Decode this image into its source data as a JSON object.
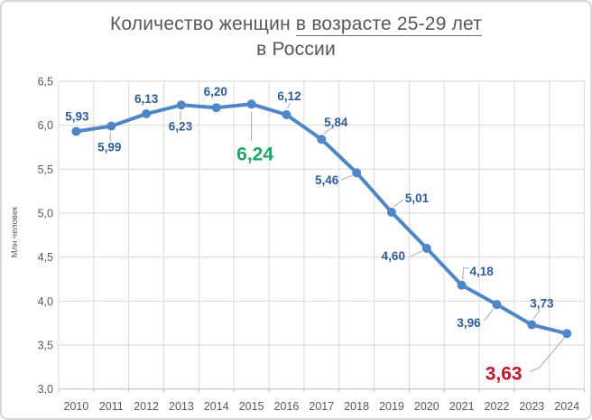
{
  "header": {
    "title_prefix": "Количество женщин ",
    "title_underlined": "в возрасте 25-29 лет",
    "title_line2": "в России"
  },
  "chart_data": {
    "type": "line",
    "title": "Количество женщин в возрасте 25-29 лет в России",
    "x": [
      "2010",
      "2011",
      "2012",
      "2013",
      "2014",
      "2015",
      "2016",
      "2017",
      "2018",
      "2019",
      "2020",
      "2021",
      "2022",
      "2023",
      "2024"
    ],
    "values": [
      5.93,
      5.99,
      6.13,
      6.23,
      6.2,
      6.24,
      6.12,
      5.84,
      5.46,
      5.01,
      4.6,
      4.18,
      3.96,
      3.73,
      3.63
    ],
    "point_labels": [
      "5,93",
      "5,99",
      "6,13",
      "6,23",
      "6,20",
      "6,24",
      "6,12",
      "5,84",
      "5,46",
      "5,01",
      "4,60",
      "4,18",
      "3,96",
      "3,73",
      "3,63"
    ],
    "ylabel": "Млн человек",
    "ylim": [
      3.0,
      6.5
    ],
    "ytick_step": 0.5,
    "ytick_labels": [
      "3,0",
      "3,5",
      "4,0",
      "4,5",
      "5,0",
      "5,5",
      "6,0",
      "6,5"
    ],
    "grid": true,
    "legend": "none",
    "highlights": [
      {
        "index": 5,
        "label": "6,24",
        "color_key": "highlight_max",
        "meaning": "peak value 2015"
      },
      {
        "index": 14,
        "label": "3,63",
        "color_key": "highlight_last",
        "meaning": "latest value 2024"
      }
    ],
    "colors": {
      "line": "#4f86c6",
      "marker": "#4f86c6",
      "data_label": "#2e5c96",
      "highlight_max": "#1fa566",
      "highlight_last": "#c0152e",
      "grid": "#d9d9d9",
      "axis": "#bfbfbf",
      "tick_label": "#595959",
      "title": "#575757",
      "leader": "#a8a8a8"
    }
  }
}
